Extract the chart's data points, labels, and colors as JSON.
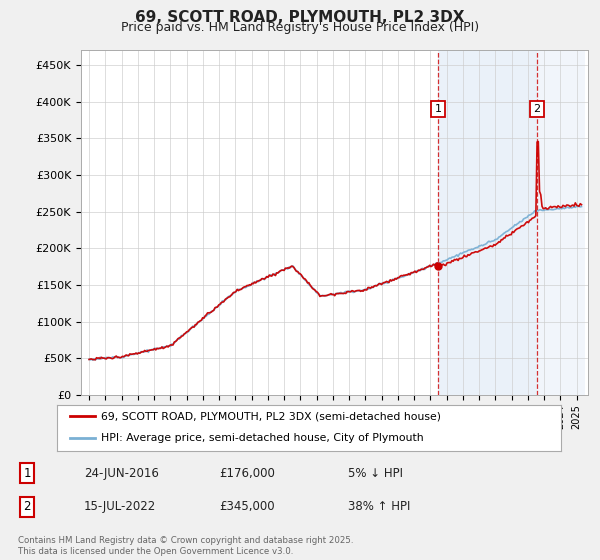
{
  "title": "69, SCOTT ROAD, PLYMOUTH, PL2 3DX",
  "subtitle": "Price paid vs. HM Land Registry's House Price Index (HPI)",
  "ylabel_ticks": [
    "£0",
    "£50K",
    "£100K",
    "£150K",
    "£200K",
    "£250K",
    "£300K",
    "£350K",
    "£400K",
    "£450K"
  ],
  "ytick_values": [
    0,
    50000,
    100000,
    150000,
    200000,
    250000,
    300000,
    350000,
    400000,
    450000
  ],
  "ylim": [
    0,
    470000
  ],
  "legend_property_label": "69, SCOTT ROAD, PLYMOUTH, PL2 3DX (semi-detached house)",
  "legend_hpi_label": "HPI: Average price, semi-detached house, City of Plymouth",
  "property_color": "#cc0000",
  "hpi_color": "#7ab0d4",
  "purchase1_date": "24-JUN-2016",
  "purchase1_price": 176000,
  "purchase1_price_str": "£176,000",
  "purchase1_pct": "5%",
  "purchase1_dir": "↓",
  "purchase2_date": "15-JUL-2022",
  "purchase2_price": 345000,
  "purchase2_price_str": "£345,000",
  "purchase2_pct": "38%",
  "purchase2_dir": "↑",
  "footer": "Contains HM Land Registry data © Crown copyright and database right 2025.\nThis data is licensed under the Open Government Licence v3.0.",
  "p1_year": 2016.48,
  "p2_year": 2022.54,
  "background_color": "#f0f0f0",
  "plot_bg_color": "#ffffff",
  "shade_color": "#dce8f5"
}
